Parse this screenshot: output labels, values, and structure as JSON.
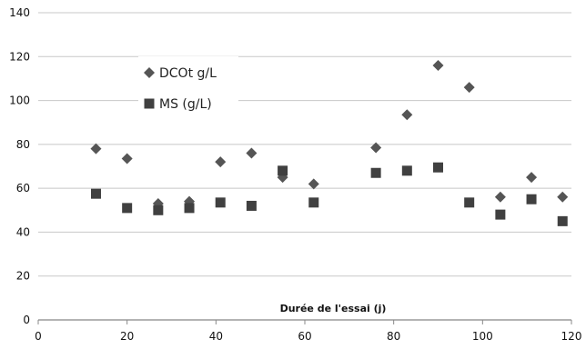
{
  "chart_data": {
    "type": "scatter",
    "title": "",
    "xlabel": "Durée de l'essai (j)",
    "ylabel": "",
    "xlim": [
      0,
      120
    ],
    "ylim": [
      0,
      140
    ],
    "xticks": [
      "0",
      "20",
      "40",
      "60",
      "80",
      "100",
      "120"
    ],
    "yticks": [
      "0",
      "20",
      "40",
      "60",
      "80",
      "100",
      "120",
      "140"
    ],
    "grid": "horizontal",
    "legend": "top-left",
    "series": [
      {
        "name": "DCOt g/L",
        "marker": "diamond",
        "color": "#555555",
        "x": [
          13,
          20,
          27,
          34,
          41,
          48,
          55,
          62,
          76,
          83,
          90,
          97,
          104,
          111,
          118
        ],
        "y": [
          78,
          73.5,
          53,
          54,
          72,
          76,
          65,
          62,
          78.5,
          93.5,
          116,
          106,
          56,
          65,
          56
        ]
      },
      {
        "name": "MS (g/L)",
        "marker": "square",
        "color": "#404040",
        "x": [
          13,
          20,
          27,
          34,
          41,
          48,
          55,
          62,
          76,
          83,
          90,
          97,
          104,
          111,
          118
        ],
        "y": [
          57.5,
          51,
          50,
          51,
          53.5,
          52,
          68,
          53.5,
          67,
          68,
          69.5,
          53.5,
          48,
          55,
          45
        ]
      }
    ]
  }
}
